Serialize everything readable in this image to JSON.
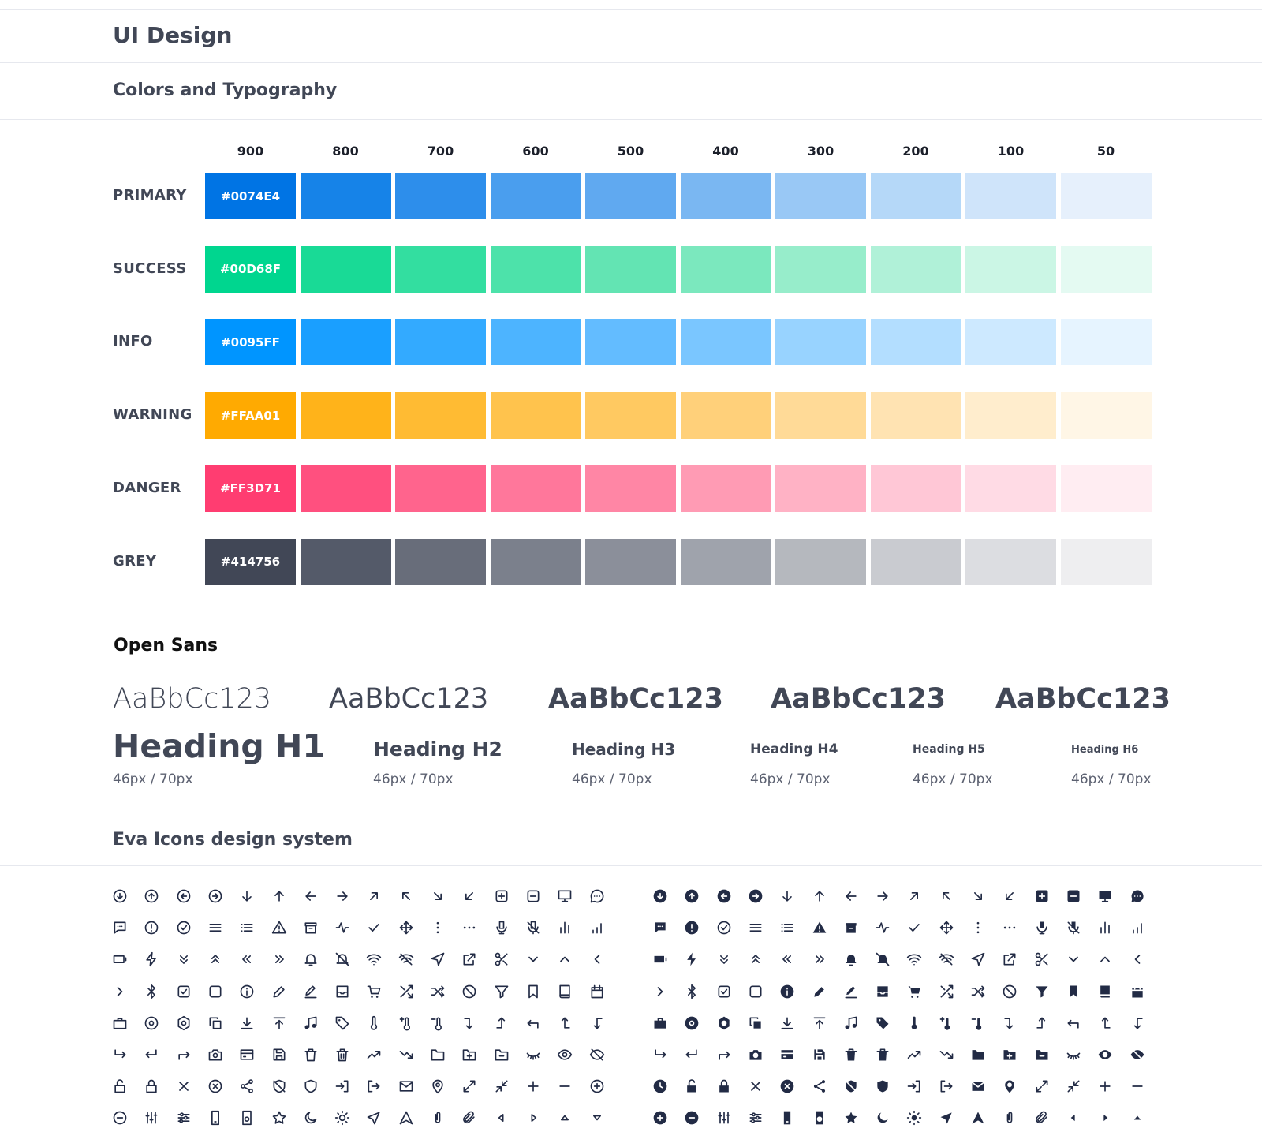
{
  "page_title": "UI Design",
  "colors_section": {
    "title": "Colors and Typography",
    "shades": [
      "900",
      "800",
      "700",
      "600",
      "500",
      "400",
      "300",
      "200",
      "100",
      "50"
    ],
    "palettes": [
      {
        "label": "PRIMARY",
        "hex_label": "#0074E4",
        "colors": [
          "#0074e4",
          "#1683e8",
          "#2d8eeb",
          "#4a9eee",
          "#60a9f0",
          "#7ab7f2",
          "#99c8f5",
          "#b5d8f8",
          "#cfe4fa",
          "#e6f0fc"
        ]
      },
      {
        "label": "SUCCESS",
        "hex_label": "#00D68F",
        "colors": [
          "#00d68f",
          "#19da96",
          "#33dea0",
          "#4de2aa",
          "#63e4b3",
          "#7be8be",
          "#97edcb",
          "#b0f1d8",
          "#cbf6e5",
          "#e4faf2"
        ]
      },
      {
        "label": "INFO",
        "hex_label": "#0095FF",
        "colors": [
          "#0095ff",
          "#1a9fff",
          "#33aaff",
          "#4db4ff",
          "#63bcff",
          "#7ac6ff",
          "#98d3ff",
          "#b3deff",
          "#cde9ff",
          "#e6f4ff"
        ]
      },
      {
        "label": "WARNING",
        "hex_label": "#FFAA01",
        "colors": [
          "#ffaa01",
          "#ffb31a",
          "#ffbb33",
          "#ffc34d",
          "#ffc961",
          "#ffd07a",
          "#ffda97",
          "#ffe3b2",
          "#ffedcd",
          "#fff6e6"
        ]
      },
      {
        "label": "DANGER",
        "hex_label": "#FF3D71",
        "colors": [
          "#ff3d71",
          "#ff507f",
          "#ff648d",
          "#ff779b",
          "#ff86a5",
          "#ff9bb4",
          "#ffb2c5",
          "#ffc7d6",
          "#ffdbe5",
          "#ffedf2"
        ]
      },
      {
        "label": "GREY",
        "hex_label": "#414756",
        "colors": [
          "#414756",
          "#545a69",
          "#686d7a",
          "#7b808c",
          "#8b8f9a",
          "#9fa3ac",
          "#b5b8be",
          "#c9cbd0",
          "#dcdde1",
          "#eeeef0"
        ]
      }
    ]
  },
  "typography": {
    "font_name": "Open Sans",
    "samples": [
      "AaBbCc123",
      "AaBbCc123",
      "AaBbCc123",
      "AaBbCc123",
      "AaBbCc123"
    ],
    "headings": [
      {
        "label": "Heading H1",
        "size": "46px / 70px"
      },
      {
        "label": "Heading H2",
        "size": "46px / 70px"
      },
      {
        "label": "Heading H3",
        "size": "46px / 70px"
      },
      {
        "label": "Heading H4",
        "size": "46px / 70px"
      },
      {
        "label": "Heading H5",
        "size": "46px / 70px"
      },
      {
        "label": "Heading H6",
        "size": "46px / 70px"
      }
    ]
  },
  "icons_section": {
    "title": "Eva Icons design system",
    "icon_color": "#222b45",
    "outline_icons": [
      [
        "arrow-circle-down-icon",
        "arrow-circle-up-icon",
        "arrow-circle-left-icon",
        "arrow-circle-right-icon",
        "arrow-down-icon",
        "arrow-up-icon",
        "arrow-left-icon",
        "arrow-right-icon",
        "arrow-up-right-icon",
        "arrow-up-left-icon",
        "arrow-down-right-icon",
        "arrow-down-left-icon",
        "plus-square-icon",
        "minus-square-icon",
        "monitor-icon",
        "message-circle-icon"
      ],
      [
        "message-square-icon",
        "alert-circle-icon",
        "checkmark-circle-icon",
        "menu-icon",
        "list-icon",
        "alert-triangle-icon",
        "archive-icon",
        "activity-icon",
        "checkmark-icon",
        "move-icon",
        "more-vertical-icon",
        "more-horizontal-icon",
        "mic-icon",
        "mic-off-icon",
        "bar-chart-icon",
        "bar-chart-2-icon"
      ],
      [
        "battery-icon",
        "flash-icon",
        "chevron-double-down-icon",
        "chevron-double-up-icon",
        "chevron-double-left-icon",
        "chevron-double-right-icon",
        "bell-icon",
        "bell-off-icon",
        "wifi-icon",
        "wifi-off-icon",
        "navigation-icon",
        "external-link-icon",
        "scissors-icon",
        "chevron-down-icon",
        "chevron-up-icon",
        "chevron-left-icon"
      ],
      [
        "chevron-right-icon",
        "bluetooth-icon",
        "checkbox-icon",
        "square-icon",
        "info-icon",
        "edit-icon",
        "edit-2-icon",
        "inbox-icon",
        "shopping-cart-icon",
        "shuffle-icon",
        "shuffle-2-icon",
        "slash-icon",
        "funnel-icon",
        "bookmark-icon",
        "book-icon",
        "calendar-icon"
      ],
      [
        "briefcase-icon",
        "settings-icon",
        "settings-2-icon",
        "copy-icon",
        "download-icon",
        "upload-icon",
        "music-icon",
        "pricetags-icon",
        "thermometer-icon",
        "thermometer-plus-icon",
        "thermometer-minus-icon",
        "corner-right-down-icon",
        "corner-right-up-icon",
        "corner-up-left-icon",
        "corner-left-up-icon",
        "corner-left-down-icon"
      ],
      [
        "corner-down-right-icon",
        "corner-down-left-icon",
        "corner-up-right-icon",
        "camera-icon",
        "credit-card-icon",
        "save-icon",
        "trash-icon",
        "trash-2-icon",
        "trending-up-icon",
        "trending-down-icon",
        "folder-icon",
        "folder-add-icon",
        "folder-remove-icon",
        "eye-closed-icon",
        "eye-icon",
        "eye-off-icon"
      ],
      [
        "unlock-icon",
        "lock-icon",
        "close-icon",
        "close-circle-icon",
        "share-icon",
        "shield-off-icon",
        "shield-icon",
        "log-in-icon",
        "log-out-icon",
        "email-icon",
        "pin-icon",
        "expand-icon",
        "collapse-icon",
        "plus-icon",
        "minus-icon",
        "plus-circle-icon"
      ],
      [
        "minus-circle-icon",
        "options-icon",
        "options-2-icon",
        "smartphone-icon",
        "speaker-icon",
        "star-icon",
        "moon-icon",
        "sun-icon",
        "navigation-2-icon",
        "triangle-icon",
        "attach-icon",
        "attach-2-icon",
        "arrow-left-small-icon",
        "arrow-right-small-icon",
        "arrow-up-small-icon",
        "arrow-down-small-icon"
      ]
    ],
    "fill_icons": [
      [
        "arrow-circle-down-fill-icon",
        "arrow-circle-up-fill-icon",
        "arrow-circle-left-fill-icon",
        "arrow-circle-right-fill-icon",
        "arrow-down-icon",
        "arrow-up-icon",
        "arrow-left-icon",
        "arrow-right-icon",
        "arrow-up-right-icon",
        "arrow-up-left-icon",
        "arrow-down-right-icon",
        "arrow-down-left-icon",
        "plus-square-fill-icon",
        "minus-square-fill-icon",
        "monitor-fill-icon",
        "message-circle-fill-icon"
      ],
      [
        "message-square-fill-icon",
        "alert-circle-fill-icon",
        "checkmark-circle-icon",
        "menu-icon",
        "list-icon",
        "alert-triangle-fill-icon",
        "archive-fill-icon",
        "activity-icon",
        "checkmark-icon",
        "move-icon",
        "more-vertical-icon",
        "more-horizontal-icon",
        "mic-fill-icon",
        "mic-off-fill-icon",
        "bar-chart-icon",
        "bar-chart-2-icon"
      ],
      [
        "battery-fill-icon",
        "flash-fill-icon",
        "chevron-double-down-icon",
        "chevron-double-up-icon",
        "chevron-double-left-icon",
        "chevron-double-right-icon",
        "bell-fill-icon",
        "bell-off-fill-icon",
        "wifi-icon",
        "wifi-off-icon",
        "navigation-icon",
        "external-link-icon",
        "scissors-icon",
        "chevron-down-icon",
        "chevron-up-icon",
        "chevron-left-icon"
      ],
      [
        "chevron-right-icon",
        "bluetooth-icon",
        "checkbox-icon",
        "square-icon",
        "info-fill-icon",
        "edit-fill-icon",
        "edit-2-fill-icon",
        "inbox-fill-icon",
        "shopping-cart-fill-icon",
        "shuffle-icon",
        "shuffle-2-icon",
        "slash-icon",
        "funnel-fill-icon",
        "bookmark-fill-icon",
        "book-fill-icon",
        "calendar-fill-icon"
      ],
      [
        "briefcase-fill-icon",
        "settings-fill-icon",
        "settings-2-fill-icon",
        "copy-fill-icon",
        "download-icon",
        "upload-icon",
        "music-icon",
        "pricetags-fill-icon",
        "thermometer-fill-icon",
        "thermometer-plus-fill-icon",
        "thermometer-minus-fill-icon",
        "corner-right-down-icon",
        "corner-right-up-icon",
        "corner-up-left-icon",
        "corner-left-up-icon",
        "corner-left-down-icon"
      ],
      [
        "corner-down-right-icon",
        "corner-down-left-icon",
        "corner-up-right-icon",
        "camera-fill-icon",
        "credit-card-fill-icon",
        "save-fill-icon",
        "trash-fill-icon",
        "trash-2-fill-icon",
        "trending-up-icon",
        "trending-down-icon",
        "folder-fill-icon",
        "folder-add-fill-icon",
        "folder-remove-fill-icon",
        "eye-closed-icon",
        "eye-fill-icon",
        "eye-off-fill-icon"
      ],
      [
        "clock-fill-icon",
        "unlock-fill-icon",
        "lock-fill-icon",
        "close-icon",
        "close-circle-fill-icon",
        "share-fill-icon",
        "shield-off-fill-icon",
        "shield-fill-icon",
        "log-in-icon",
        "log-out-icon",
        "email-fill-icon",
        "pin-fill-icon",
        "expand-icon",
        "collapse-icon",
        "plus-icon",
        "minus-icon"
      ],
      [
        "plus-circle-fill-icon",
        "minus-circle-fill-icon",
        "options-icon",
        "options-2-icon",
        "smartphone-fill-icon",
        "speaker-fill-icon",
        "star-fill-icon",
        "moon-fill-icon",
        "sun-fill-icon",
        "navigation-2-fill-icon",
        "triangle-fill-icon",
        "attach-icon",
        "attach-2-icon",
        "arrow-left-small-fill-icon",
        "arrow-right-small-fill-icon",
        "arrow-up-small-fill-icon"
      ]
    ]
  }
}
